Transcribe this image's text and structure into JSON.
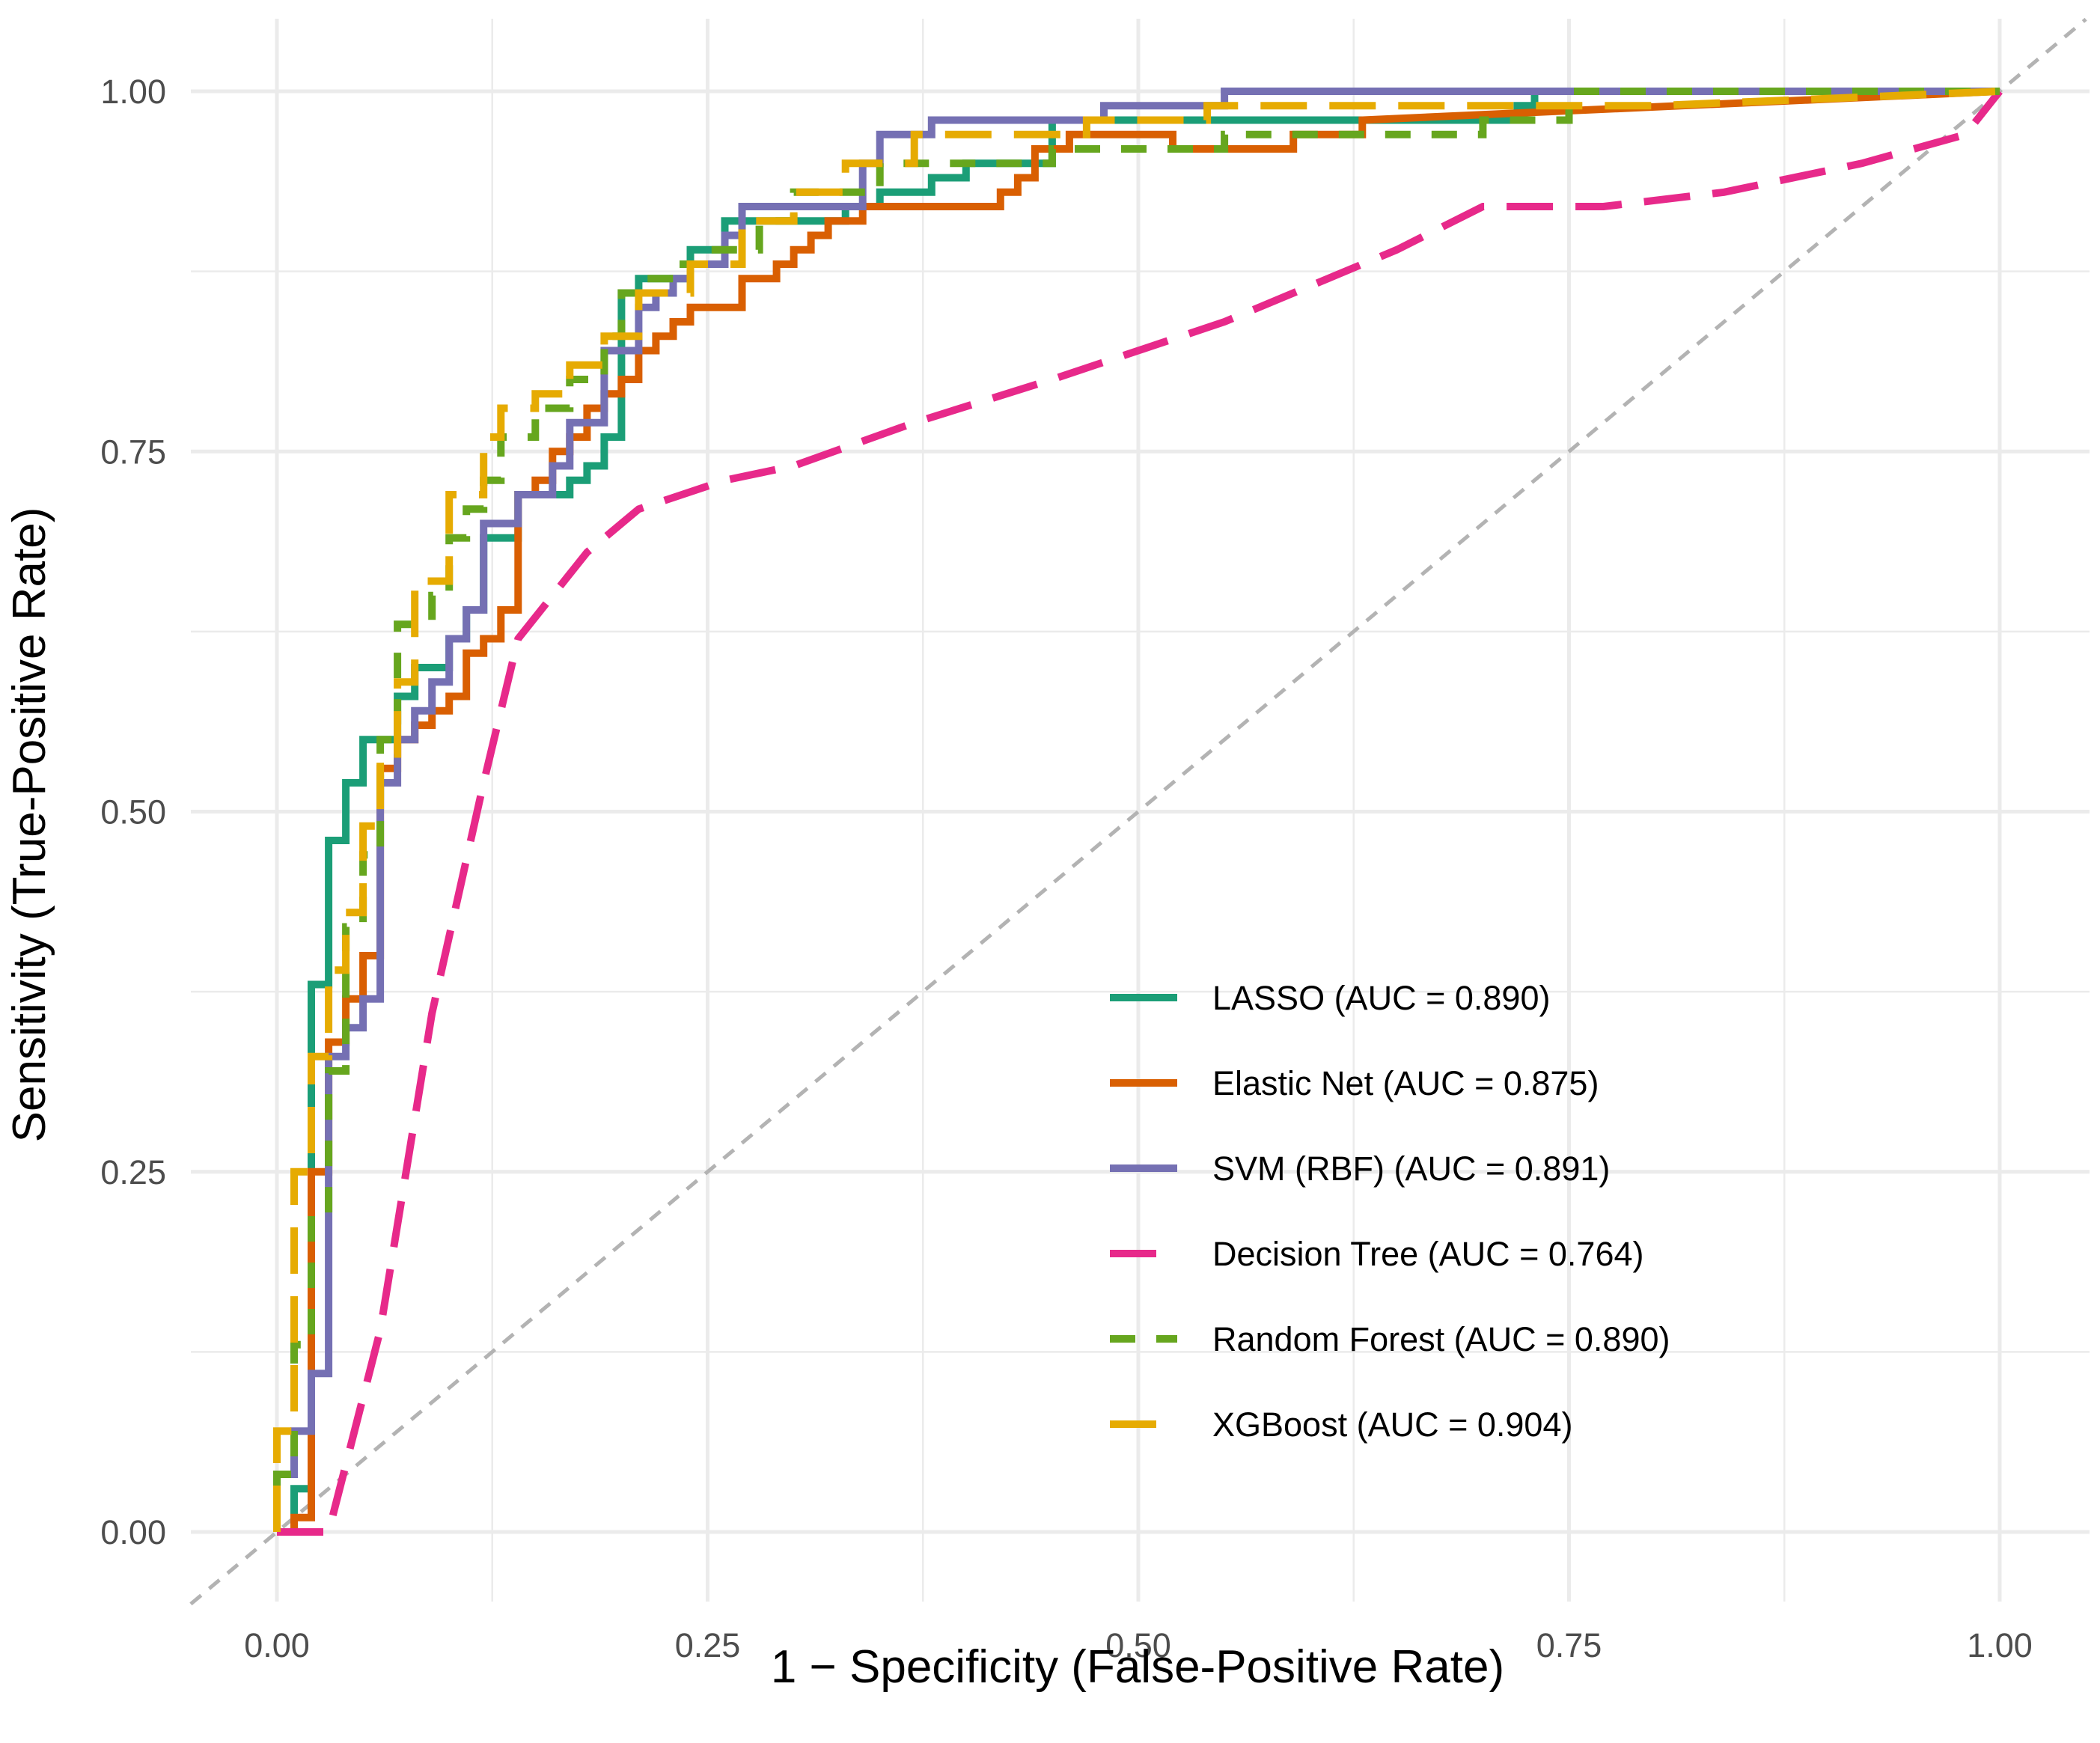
{
  "chart_data": {
    "type": "line",
    "title": "",
    "xlabel": "1 − Specificity (False-Positive Rate)",
    "ylabel": "Sensitivity (True-Positive Rate)",
    "xlim": [
      -0.05,
      1.05
    ],
    "ylim": [
      -0.05,
      1.05
    ],
    "x_ticks": [
      "0.00",
      "0.25",
      "0.50",
      "0.75",
      "1.00"
    ],
    "y_ticks": [
      "0.00",
      "0.25",
      "0.50",
      "0.75",
      "1.00"
    ],
    "grid": true,
    "legend_position": "bottom-right inside",
    "reference_line": {
      "x": [
        -0.05,
        1.05
      ],
      "y": [
        -0.05,
        1.05
      ],
      "style": "dashed",
      "color": "#b3b3b3"
    },
    "series": [
      {
        "name": "LASSO (AUC = 0.890)",
        "color": "#1b9e77",
        "dash": "solid",
        "x": [
          0.0,
          0.01,
          0.01,
          0.02,
          0.02,
          0.02,
          0.03,
          0.03,
          0.04,
          0.04,
          0.05,
          0.05,
          0.07,
          0.07,
          0.08,
          0.08,
          0.1,
          0.1,
          0.11,
          0.11,
          0.12,
          0.12,
          0.14,
          0.14,
          0.17,
          0.17,
          0.18,
          0.18,
          0.19,
          0.19,
          0.2,
          0.2,
          0.21,
          0.21,
          0.24,
          0.24,
          0.26,
          0.26,
          0.33,
          0.33,
          0.35,
          0.35,
          0.38,
          0.38,
          0.4,
          0.4,
          0.45,
          0.45,
          0.72,
          0.72,
          0.73,
          0.73,
          1.0
        ],
        "y": [
          0.0,
          0.0,
          0.03,
          0.03,
          0.33,
          0.38,
          0.38,
          0.48,
          0.48,
          0.52,
          0.52,
          0.55,
          0.55,
          0.58,
          0.58,
          0.6,
          0.6,
          0.62,
          0.62,
          0.64,
          0.64,
          0.69,
          0.69,
          0.72,
          0.72,
          0.73,
          0.73,
          0.74,
          0.74,
          0.76,
          0.76,
          0.86,
          0.86,
          0.87,
          0.87,
          0.89,
          0.89,
          0.91,
          0.91,
          0.92,
          0.92,
          0.93,
          0.93,
          0.94,
          0.94,
          0.95,
          0.95,
          0.98,
          0.98,
          0.99,
          0.99,
          1.0,
          1.0
        ]
      },
      {
        "name": "Elastic Net (AUC = 0.875)",
        "color": "#d95f02",
        "dash": "solid",
        "x": [
          0.0,
          0.01,
          0.01,
          0.02,
          0.02,
          0.03,
          0.03,
          0.04,
          0.04,
          0.05,
          0.05,
          0.06,
          0.06,
          0.07,
          0.07,
          0.08,
          0.08,
          0.09,
          0.09,
          0.1,
          0.1,
          0.11,
          0.11,
          0.12,
          0.12,
          0.13,
          0.13,
          0.14,
          0.14,
          0.15,
          0.15,
          0.16,
          0.16,
          0.17,
          0.17,
          0.18,
          0.18,
          0.19,
          0.19,
          0.2,
          0.2,
          0.21,
          0.21,
          0.22,
          0.22,
          0.23,
          0.23,
          0.24,
          0.24,
          0.27,
          0.27,
          0.29,
          0.29,
          0.3,
          0.3,
          0.31,
          0.31,
          0.32,
          0.32,
          0.34,
          0.34,
          0.42,
          0.42,
          0.43,
          0.43,
          0.44,
          0.44,
          0.46,
          0.46,
          0.52,
          0.52,
          0.59,
          0.59,
          0.63,
          0.63,
          1.0
        ],
        "y": [
          0.0,
          0.0,
          0.01,
          0.01,
          0.25,
          0.25,
          0.34,
          0.34,
          0.37,
          0.37,
          0.4,
          0.4,
          0.53,
          0.53,
          0.55,
          0.55,
          0.56,
          0.56,
          0.57,
          0.57,
          0.58,
          0.58,
          0.61,
          0.61,
          0.62,
          0.62,
          0.64,
          0.64,
          0.72,
          0.72,
          0.73,
          0.73,
          0.75,
          0.75,
          0.76,
          0.76,
          0.78,
          0.78,
          0.79,
          0.79,
          0.8,
          0.8,
          0.82,
          0.82,
          0.83,
          0.83,
          0.84,
          0.84,
          0.85,
          0.85,
          0.87,
          0.87,
          0.88,
          0.88,
          0.89,
          0.89,
          0.9,
          0.9,
          0.91,
          0.91,
          0.92,
          0.92,
          0.93,
          0.93,
          0.94,
          0.94,
          0.96,
          0.96,
          0.97,
          0.97,
          0.96,
          0.96,
          0.97,
          0.97,
          0.98,
          1.0
        ]
      },
      {
        "name": "SVM (RBF) (AUC = 0.891)",
        "color": "#7570b3",
        "dash": "solid",
        "x": [
          0.0,
          0.0,
          0.01,
          0.01,
          0.02,
          0.02,
          0.03,
          0.03,
          0.04,
          0.04,
          0.05,
          0.05,
          0.06,
          0.06,
          0.07,
          0.07,
          0.08,
          0.08,
          0.09,
          0.09,
          0.1,
          0.1,
          0.11,
          0.11,
          0.12,
          0.12,
          0.14,
          0.14,
          0.16,
          0.16,
          0.17,
          0.17,
          0.19,
          0.19,
          0.21,
          0.21,
          0.22,
          0.22,
          0.23,
          0.23,
          0.24,
          0.24,
          0.26,
          0.26,
          0.27,
          0.27,
          0.34,
          0.34,
          0.35,
          0.35,
          0.38,
          0.38,
          0.41,
          0.41,
          0.48,
          0.48,
          0.55,
          0.55,
          0.8,
          0.8,
          1.0
        ],
        "y": [
          0.0,
          0.04,
          0.04,
          0.07,
          0.07,
          0.11,
          0.11,
          0.33,
          0.33,
          0.35,
          0.35,
          0.37,
          0.37,
          0.52,
          0.52,
          0.55,
          0.55,
          0.57,
          0.57,
          0.59,
          0.59,
          0.62,
          0.62,
          0.64,
          0.64,
          0.7,
          0.7,
          0.72,
          0.72,
          0.74,
          0.74,
          0.77,
          0.77,
          0.82,
          0.82,
          0.85,
          0.85,
          0.86,
          0.86,
          0.87,
          0.87,
          0.88,
          0.88,
          0.9,
          0.9,
          0.92,
          0.92,
          0.95,
          0.95,
          0.97,
          0.97,
          0.98,
          0.98,
          0.98,
          0.98,
          0.99,
          0.99,
          1.0,
          1.0,
          1.0,
          1.0
        ]
      },
      {
        "name": "Decision Tree (AUC = 0.764)",
        "color": "#e7298a",
        "dash": "longdash",
        "x": [
          0.0,
          0.03,
          0.06,
          0.09,
          0.12,
          0.14,
          0.18,
          0.2,
          0.21,
          0.26,
          0.3,
          0.37,
          0.45,
          0.55,
          0.65,
          0.7,
          0.77,
          0.84,
          0.92,
          0.98,
          1.0
        ],
        "y": [
          0.0,
          0.0,
          0.14,
          0.36,
          0.52,
          0.62,
          0.68,
          0.7,
          0.71,
          0.73,
          0.74,
          0.77,
          0.8,
          0.84,
          0.89,
          0.92,
          0.92,
          0.93,
          0.95,
          0.97,
          1.0
        ]
      },
      {
        "name": "Random Forest (AUC = 0.890)",
        "color": "#66a61e",
        "dash": "dashed",
        "x": [
          0.0,
          0.0,
          0.01,
          0.01,
          0.02,
          0.02,
          0.03,
          0.03,
          0.04,
          0.04,
          0.05,
          0.05,
          0.06,
          0.06,
          0.07,
          0.07,
          0.09,
          0.09,
          0.1,
          0.1,
          0.11,
          0.11,
          0.12,
          0.12,
          0.13,
          0.13,
          0.15,
          0.15,
          0.17,
          0.17,
          0.19,
          0.19,
          0.2,
          0.2,
          0.21,
          0.21,
          0.23,
          0.23,
          0.25,
          0.25,
          0.28,
          0.28,
          0.3,
          0.3,
          0.35,
          0.35,
          0.45,
          0.45,
          0.55,
          0.55,
          0.7,
          0.7,
          0.75,
          0.75,
          1.0
        ],
        "y": [
          0.0,
          0.04,
          0.04,
          0.13,
          0.13,
          0.22,
          0.22,
          0.32,
          0.32,
          0.42,
          0.42,
          0.47,
          0.47,
          0.55,
          0.55,
          0.63,
          0.63,
          0.65,
          0.65,
          0.69,
          0.69,
          0.71,
          0.71,
          0.73,
          0.73,
          0.76,
          0.76,
          0.78,
          0.78,
          0.8,
          0.8,
          0.83,
          0.83,
          0.86,
          0.86,
          0.87,
          0.87,
          0.88,
          0.88,
          0.89,
          0.89,
          0.91,
          0.91,
          0.93,
          0.93,
          0.95,
          0.95,
          0.96,
          0.96,
          0.97,
          0.97,
          0.98,
          0.98,
          1.0,
          1.0
        ]
      },
      {
        "name": "XGBoost (AUC = 0.904)",
        "color": "#e6ab02",
        "dash": "longdash",
        "x": [
          0.0,
          0.0,
          0.01,
          0.01,
          0.02,
          0.02,
          0.03,
          0.03,
          0.04,
          0.04,
          0.05,
          0.05,
          0.06,
          0.06,
          0.07,
          0.07,
          0.08,
          0.08,
          0.1,
          0.1,
          0.12,
          0.12,
          0.13,
          0.13,
          0.15,
          0.15,
          0.17,
          0.17,
          0.19,
          0.19,
          0.21,
          0.21,
          0.24,
          0.24,
          0.27,
          0.27,
          0.3,
          0.3,
          0.33,
          0.33,
          0.37,
          0.37,
          0.41,
          0.41,
          0.47,
          0.47,
          0.54,
          0.54,
          0.8,
          0.8,
          1.0
        ],
        "y": [
          0.0,
          0.07,
          0.07,
          0.25,
          0.25,
          0.33,
          0.33,
          0.39,
          0.39,
          0.43,
          0.43,
          0.49,
          0.49,
          0.54,
          0.54,
          0.59,
          0.59,
          0.66,
          0.66,
          0.72,
          0.72,
          0.76,
          0.76,
          0.78,
          0.78,
          0.79,
          0.79,
          0.81,
          0.81,
          0.83,
          0.83,
          0.86,
          0.86,
          0.88,
          0.88,
          0.91,
          0.91,
          0.93,
          0.93,
          0.95,
          0.95,
          0.97,
          0.97,
          0.97,
          0.97,
          0.98,
          0.98,
          0.99,
          0.99,
          0.99,
          1.0
        ]
      }
    ]
  }
}
